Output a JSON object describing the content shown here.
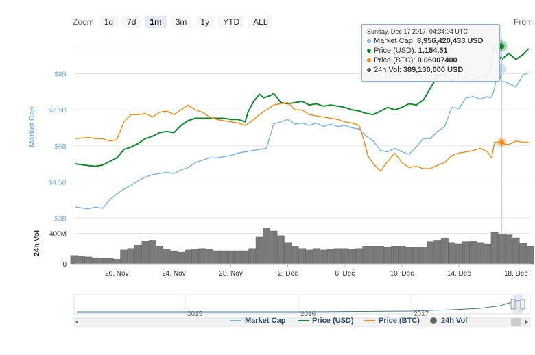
{
  "zoom": {
    "label": "Zoom",
    "buttons": [
      "1d",
      "7d",
      "1m",
      "3m",
      "1y",
      "YTD",
      "ALL"
    ],
    "active": "1m"
  },
  "from_label": "From",
  "tooltip": {
    "date": "Sunday, Dec 17 2017, 04:34:04 UTC",
    "rows": [
      {
        "label": "Market Cap:",
        "value": "8,956,420,433 USD",
        "color": "#7cb5ec"
      },
      {
        "label": "Price (USD):",
        "value": "1,154.51",
        "color": "#0c8b2a"
      },
      {
        "label": "Price (BTC):",
        "value": "0.06007400",
        "color": "#f28f1c"
      },
      {
        "label": "24h Vol:",
        "value": "389,130,000 USD",
        "color": "#555555"
      }
    ]
  },
  "legend": [
    {
      "label": "Market Cap",
      "color": "#7cb5ec",
      "marker": "line"
    },
    {
      "label": "Price (USD)",
      "color": "#0c8b2a",
      "marker": "line"
    },
    {
      "label": "Price (BTC)",
      "color": "#f28f1c",
      "marker": "line"
    },
    {
      "label": "24h Vol",
      "color": "#666666",
      "marker": "circle"
    }
  ],
  "chart_data": {
    "type": "line",
    "x_tick_labels": [
      "20. Nov",
      "24. Nov",
      "28. Nov",
      "2. Dec",
      "6. Dec",
      "10. Dec",
      "14. Dec",
      "18. Dec"
    ],
    "x_tick_days": [
      20,
      24,
      28,
      32,
      36,
      40,
      44,
      48
    ],
    "x_range_days": [
      17,
      49
    ],
    "ylabel_market_cap": "Market Cap",
    "ylabel_volume": "24h Vol",
    "market_cap_ticks": [
      "$3B",
      "$4.5B",
      "$6B",
      "$7.5B",
      "$9B"
    ],
    "market_cap_tick_values": [
      3.0,
      4.5,
      6.0,
      7.5,
      9.0
    ],
    "market_cap_range": [
      3.0,
      10.5
    ],
    "volume_ticks": [
      "0",
      "400M"
    ],
    "volume_tick_values": [
      0,
      400
    ],
    "volume_range": [
      0,
      600
    ],
    "series": [
      {
        "name": "Market Cap",
        "unit": "B USD",
        "color": "#7cb5ec",
        "x": [
          17.1,
          18.0,
          18.5,
          19.0,
          19.5,
          20.0,
          20.5,
          21.0,
          21.5,
          22.0,
          22.5,
          23.0,
          23.5,
          24.0,
          24.5,
          25.0,
          25.5,
          26.0,
          26.5,
          27.0,
          27.5,
          28.0,
          28.5,
          29.0,
          29.5,
          30.0,
          30.5,
          31.0,
          31.5,
          32.0,
          32.5,
          33.0,
          33.5,
          34.0,
          34.5,
          35.0,
          35.5,
          36.0,
          36.5,
          37.0,
          37.5,
          38.0,
          38.5,
          39.0,
          39.5,
          40.0,
          40.5,
          41.0,
          41.5,
          42.0,
          42.5,
          43.0,
          43.5,
          44.0,
          44.5,
          45.0,
          45.5,
          46.0,
          46.2,
          46.35,
          46.5,
          46.7,
          47.0,
          47.5,
          48.0,
          48.5,
          48.9
        ],
        "values": [
          3.45,
          3.38,
          3.45,
          3.4,
          3.75,
          4.0,
          4.2,
          4.35,
          4.55,
          4.7,
          4.8,
          4.85,
          4.9,
          4.85,
          5.0,
          5.1,
          5.3,
          5.4,
          5.5,
          5.5,
          5.55,
          5.6,
          5.7,
          5.75,
          5.8,
          5.85,
          5.9,
          6.9,
          7.0,
          7.1,
          6.9,
          6.95,
          6.85,
          6.95,
          6.8,
          6.9,
          6.8,
          6.85,
          6.75,
          6.7,
          6.4,
          6.2,
          5.8,
          5.75,
          5.9,
          5.75,
          5.65,
          5.95,
          6.3,
          6.3,
          6.6,
          6.8,
          7.6,
          7.55,
          8.0,
          8.05,
          7.95,
          8.05,
          8.0,
          8.1,
          8.4,
          9.2,
          8.7,
          8.6,
          8.45,
          8.95,
          9.05
        ]
      },
      {
        "name": "Price (USD)",
        "unit": "USD",
        "color": "#0c8b2a",
        "x": [
          17.1,
          18.0,
          18.5,
          19.0,
          19.5,
          20.0,
          20.5,
          21.0,
          21.5,
          22.0,
          22.5,
          23.0,
          23.5,
          24.0,
          24.5,
          25.0,
          25.5,
          26.0,
          26.5,
          27.0,
          27.5,
          28.0,
          28.5,
          29.0,
          29.2,
          29.6,
          30.0,
          30.3,
          30.8,
          31.0,
          31.5,
          32.0,
          32.5,
          33.0,
          33.5,
          34.0,
          34.5,
          35.0,
          35.5,
          36.0,
          36.5,
          37.0,
          37.5,
          38.0,
          38.5,
          39.0,
          39.5,
          40.0,
          40.5,
          41.0,
          41.5,
          42.0,
          42.5,
          43.0,
          43.5,
          44.0,
          44.5,
          45.0,
          45.5,
          46.0,
          46.2,
          46.35,
          46.5,
          46.7,
          47.0,
          47.5,
          48.0,
          48.5,
          48.9
        ],
        "values": [
          5.25,
          5.18,
          5.15,
          5.2,
          5.35,
          5.5,
          5.85,
          5.95,
          6.1,
          6.3,
          6.4,
          6.55,
          6.6,
          6.55,
          6.85,
          7.05,
          7.15,
          7.15,
          7.15,
          7.15,
          7.15,
          7.1,
          7.1,
          7.0,
          7.4,
          7.85,
          8.15,
          8.0,
          8.1,
          8.2,
          7.8,
          7.75,
          7.8,
          7.85,
          7.7,
          7.75,
          7.65,
          7.7,
          7.65,
          7.6,
          7.5,
          7.45,
          7.35,
          7.3,
          7.45,
          7.6,
          7.5,
          7.6,
          7.75,
          7.7,
          7.9,
          8.4,
          8.9,
          9.0,
          8.7,
          8.9,
          8.8,
          8.7,
          8.85,
          8.9,
          9.15,
          9.8,
          10.15,
          9.8,
          9.6,
          9.85,
          9.6,
          9.8,
          10.05
        ]
      },
      {
        "name": "Price (BTC)",
        "unit": "index",
        "color": "#f28f1c",
        "x": [
          17.1,
          18.0,
          18.5,
          19.0,
          19.5,
          20.0,
          20.5,
          21.0,
          21.5,
          22.0,
          22.5,
          23.0,
          23.5,
          24.0,
          24.5,
          25.0,
          25.5,
          26.0,
          26.5,
          27.0,
          27.5,
          28.0,
          28.5,
          29.0,
          29.5,
          30.0,
          30.5,
          31.0,
          31.5,
          32.0,
          32.5,
          33.0,
          33.5,
          34.0,
          34.5,
          35.0,
          35.5,
          36.0,
          36.5,
          37.0,
          37.3,
          37.6,
          38.0,
          38.5,
          39.0,
          39.5,
          40.0,
          40.5,
          41.0,
          41.5,
          42.0,
          42.5,
          43.0,
          43.5,
          44.0,
          44.5,
          45.0,
          45.5,
          46.0,
          46.3,
          46.5,
          46.7,
          47.0,
          47.5,
          48.0,
          48.5,
          48.9
        ],
        "values": [
          6.3,
          6.35,
          6.3,
          6.3,
          6.2,
          6.25,
          7.0,
          7.3,
          7.3,
          7.35,
          7.2,
          7.4,
          7.45,
          7.3,
          7.5,
          7.7,
          7.5,
          7.4,
          7.2,
          7.1,
          7.05,
          7.0,
          6.95,
          6.85,
          7.05,
          7.3,
          7.5,
          7.7,
          7.75,
          7.8,
          7.5,
          7.5,
          7.3,
          7.25,
          7.2,
          7.15,
          7.1,
          7.0,
          6.95,
          6.85,
          6.3,
          5.6,
          5.25,
          4.95,
          5.35,
          5.7,
          5.3,
          5.1,
          5.15,
          5.05,
          5.05,
          5.2,
          5.3,
          5.6,
          5.7,
          5.75,
          5.8,
          5.9,
          5.75,
          5.5,
          6.15,
          6.15,
          6.1,
          6.05,
          6.2,
          6.15,
          6.15
        ]
      },
      {
        "name": "24h Vol",
        "unit": "M USD",
        "x": [
          17.0,
          17.5,
          18.0,
          18.5,
          19.0,
          19.5,
          20.0,
          20.5,
          21.0,
          21.5,
          22.0,
          22.5,
          23.0,
          23.5,
          24.0,
          24.5,
          25.0,
          25.5,
          26.0,
          26.5,
          27.0,
          27.5,
          28.0,
          28.5,
          29.0,
          29.5,
          30.0,
          30.5,
          31.0,
          31.5,
          32.0,
          32.5,
          33.0,
          33.5,
          34.0,
          34.5,
          35.0,
          35.5,
          36.0,
          36.5,
          37.0,
          37.5,
          38.0,
          38.5,
          39.0,
          39.5,
          40.0,
          40.5,
          41.0,
          41.5,
          42.0,
          42.5,
          43.0,
          43.5,
          44.0,
          44.5,
          45.0,
          45.5,
          46.0,
          46.5,
          47.0,
          47.5,
          48.0,
          48.5,
          49.0
        ],
        "values": [
          110,
          100,
          90,
          80,
          70,
          70,
          60,
          180,
          200,
          240,
          300,
          310,
          230,
          190,
          170,
          160,
          180,
          190,
          200,
          190,
          170,
          170,
          170,
          170,
          170,
          200,
          350,
          470,
          430,
          370,
          280,
          230,
          200,
          180,
          200,
          180,
          190,
          200,
          200,
          190,
          200,
          230,
          230,
          230,
          220,
          230,
          230,
          220,
          220,
          220,
          290,
          310,
          330,
          280,
          260,
          290,
          300,
          280,
          260,
          410,
          390,
          380,
          340,
          270,
          230
        ]
      }
    ]
  },
  "navigator": {
    "year_labels": [
      "2015",
      "2016",
      "2017"
    ]
  }
}
